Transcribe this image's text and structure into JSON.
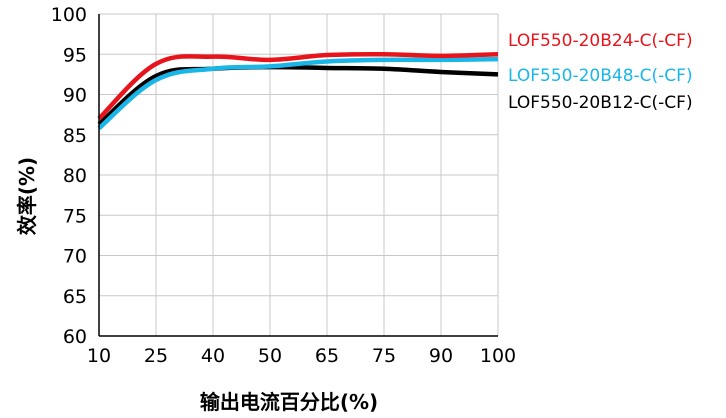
{
  "chart_data": {
    "type": "line",
    "title": "",
    "xlabel": "输出电流百分比(%)",
    "ylabel": "效率(%)",
    "x": [
      10,
      25,
      40,
      50,
      65,
      75,
      90,
      100
    ],
    "x_tick_labels": [
      "10",
      "25",
      "40",
      "50",
      "65",
      "75",
      "90",
      "100"
    ],
    "y_ticks": [
      60,
      65,
      70,
      75,
      80,
      85,
      90,
      95,
      100
    ],
    "ylim": [
      60,
      100
    ],
    "grid": true,
    "legend_placement": "right",
    "series": [
      {
        "name": "LOF550-20B24-C(-CF)",
        "color": "#e8141c",
        "values": [
          87.0,
          93.8,
          94.7,
          94.3,
          94.9,
          95.0,
          94.8,
          95.0
        ]
      },
      {
        "name": "LOF550-20B48-C(-CF)",
        "color": "#1ab6e8",
        "values": [
          85.8,
          91.8,
          93.2,
          93.5,
          94.1,
          94.3,
          94.3,
          94.4
        ]
      },
      {
        "name": "LOF550-20B12-C(-CF)",
        "color": "#000000",
        "values": [
          86.3,
          92.3,
          93.2,
          93.4,
          93.3,
          93.2,
          92.8,
          92.5
        ]
      }
    ]
  }
}
